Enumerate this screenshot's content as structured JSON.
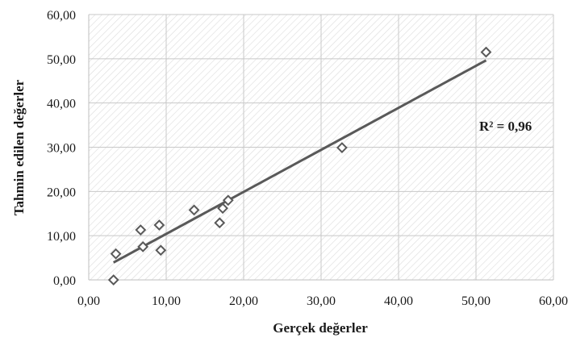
{
  "chart_data": {
    "type": "scatter",
    "title": "",
    "xlabel": "Gerçek değerler",
    "ylabel": "Tahmin edilen değerler",
    "xlim": [
      0,
      60
    ],
    "ylim": [
      0,
      60
    ],
    "x_ticks": [
      "0,00",
      "10,00",
      "20,00",
      "30,00",
      "40,00",
      "50,00",
      "60,00"
    ],
    "y_ticks": [
      "0,00",
      "10,00",
      "20,00",
      "30,00",
      "40,00",
      "50,00",
      "60,00"
    ],
    "grid": true,
    "legend": "none",
    "series": [
      {
        "marker": "diamond",
        "points": [
          {
            "x": 3.2,
            "y": 0.0
          },
          {
            "x": 3.5,
            "y": 5.9
          },
          {
            "x": 6.7,
            "y": 11.3
          },
          {
            "x": 7.0,
            "y": 7.5
          },
          {
            "x": 9.1,
            "y": 12.4
          },
          {
            "x": 9.3,
            "y": 6.7
          },
          {
            "x": 13.6,
            "y": 15.8
          },
          {
            "x": 16.9,
            "y": 12.9
          },
          {
            "x": 17.3,
            "y": 16.2
          },
          {
            "x": 18.0,
            "y": 18.0
          },
          {
            "x": 32.7,
            "y": 29.9
          },
          {
            "x": 51.3,
            "y": 51.5
          }
        ]
      }
    ],
    "trendline": {
      "x_start": 3.2,
      "x_end": 51.3,
      "slope": 0.95,
      "intercept": 0.9
    },
    "annotation": "R² = 0,96",
    "colors": {
      "marker_stroke": "#595959",
      "trendline": "#595959",
      "grid": "#c8c8c8"
    }
  }
}
